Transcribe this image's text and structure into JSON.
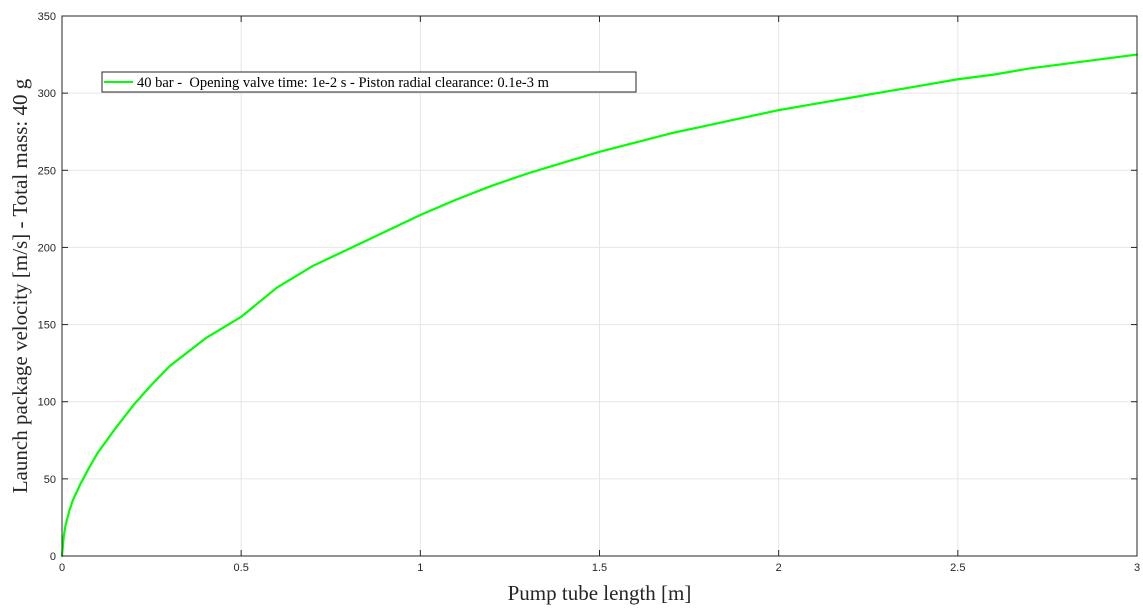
{
  "chart_data": {
    "type": "line",
    "title": "",
    "xlabel": "Pump tube length [m]",
    "ylabel": "Launch package velocity [m/s] - Total mass: 40 g",
    "xlim": [
      0,
      3
    ],
    "ylim": [
      0,
      350
    ],
    "xticks": [
      0,
      0.5,
      1,
      1.5,
      2,
      2.5,
      3
    ],
    "xtick_labels": [
      "0",
      "0.5",
      "1",
      "1.5",
      "2",
      "2.5",
      "3"
    ],
    "yticks": [
      0,
      50,
      100,
      150,
      200,
      250,
      300,
      350
    ],
    "ytick_labels": [
      "0",
      "50",
      "100",
      "150",
      "200",
      "250",
      "300",
      "350"
    ],
    "grid": true,
    "legend_position": "top-left",
    "series": [
      {
        "name": "40 bar -  Opening valve time: 1e-2 s - Piston radial clearance: 0.1e-3 m",
        "color": "#00ff00",
        "x": [
          0,
          0.005,
          0.01,
          0.02,
          0.03,
          0.05,
          0.075,
          0.1,
          0.15,
          0.2,
          0.25,
          0.3,
          0.4,
          0.5,
          0.6,
          0.7,
          0.8,
          0.9,
          1.0,
          1.1,
          1.2,
          1.3,
          1.4,
          1.5,
          1.6,
          1.7,
          1.8,
          1.9,
          2.0,
          2.1,
          2.2,
          2.3,
          2.4,
          2.5,
          2.6,
          2.7,
          2.8,
          2.9,
          3.0
        ],
        "y": [
          0,
          13,
          20,
          29,
          36,
          46,
          57,
          67,
          83,
          98,
          111,
          123,
          141,
          155,
          174,
          188,
          199,
          210,
          221,
          231,
          240,
          248,
          255,
          262,
          268,
          274,
          279,
          284,
          289,
          293,
          297,
          301,
          305,
          309,
          312,
          316,
          319,
          322,
          325
        ]
      }
    ]
  }
}
